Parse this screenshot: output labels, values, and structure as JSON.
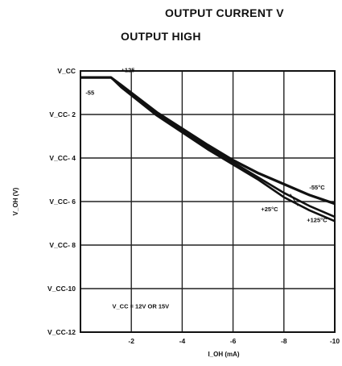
{
  "header": {
    "title_line1": "OUTPUT CURRENT V",
    "title_line2": "OUTPUT HIGH"
  },
  "chart_data": {
    "type": "line",
    "xlabel": "I_OH (mA)",
    "ylabel": "V_OH (V)",
    "xlim": [
      0,
      -10
    ],
    "ylim": [
      0,
      -12
    ],
    "x_ticks": [
      "-2",
      "-4",
      "-6",
      "-8",
      "-10"
    ],
    "y_ticks": [
      "V_CC",
      "V_CC- 2",
      "V_CC- 4",
      "V_CC- 6",
      "V_CC- 8",
      "V_CC-10",
      "V_CC-12"
    ],
    "grid": true,
    "series": [
      {
        "name": "-55°C",
        "x": [
          0,
          -1.2,
          -1.6,
          -3,
          -5,
          -6,
          -7,
          -8,
          -9,
          -10
        ],
        "y": [
          -0.3,
          -0.3,
          -0.65,
          -1.9,
          -3.4,
          -4.1,
          -4.7,
          -5.2,
          -5.7,
          -6.1
        ]
      },
      {
        "name": "+25°C",
        "x": [
          0,
          -1.2,
          -1.6,
          -3,
          -5,
          -6,
          -7,
          -8,
          -9,
          -10
        ],
        "y": [
          -0.3,
          -0.3,
          -0.7,
          -2.0,
          -3.5,
          -4.2,
          -4.9,
          -5.6,
          -6.2,
          -6.7
        ]
      },
      {
        "name": "+125°C",
        "x": [
          0,
          -1.2,
          -1.6,
          -3,
          -5,
          -6,
          -7,
          -8,
          -9,
          -10
        ],
        "y": [
          -0.3,
          -0.3,
          -0.75,
          -2.05,
          -3.6,
          -4.3,
          -5.0,
          -5.8,
          -6.4,
          -6.9
        ]
      }
    ],
    "annotations": {
      "upper_left": "+125",
      "lower_left": "-55",
      "right_1": "-55°C",
      "right_2": "+25°C",
      "right_3": "+125°C",
      "condition": "V_CC = 12V OR 15V"
    }
  }
}
